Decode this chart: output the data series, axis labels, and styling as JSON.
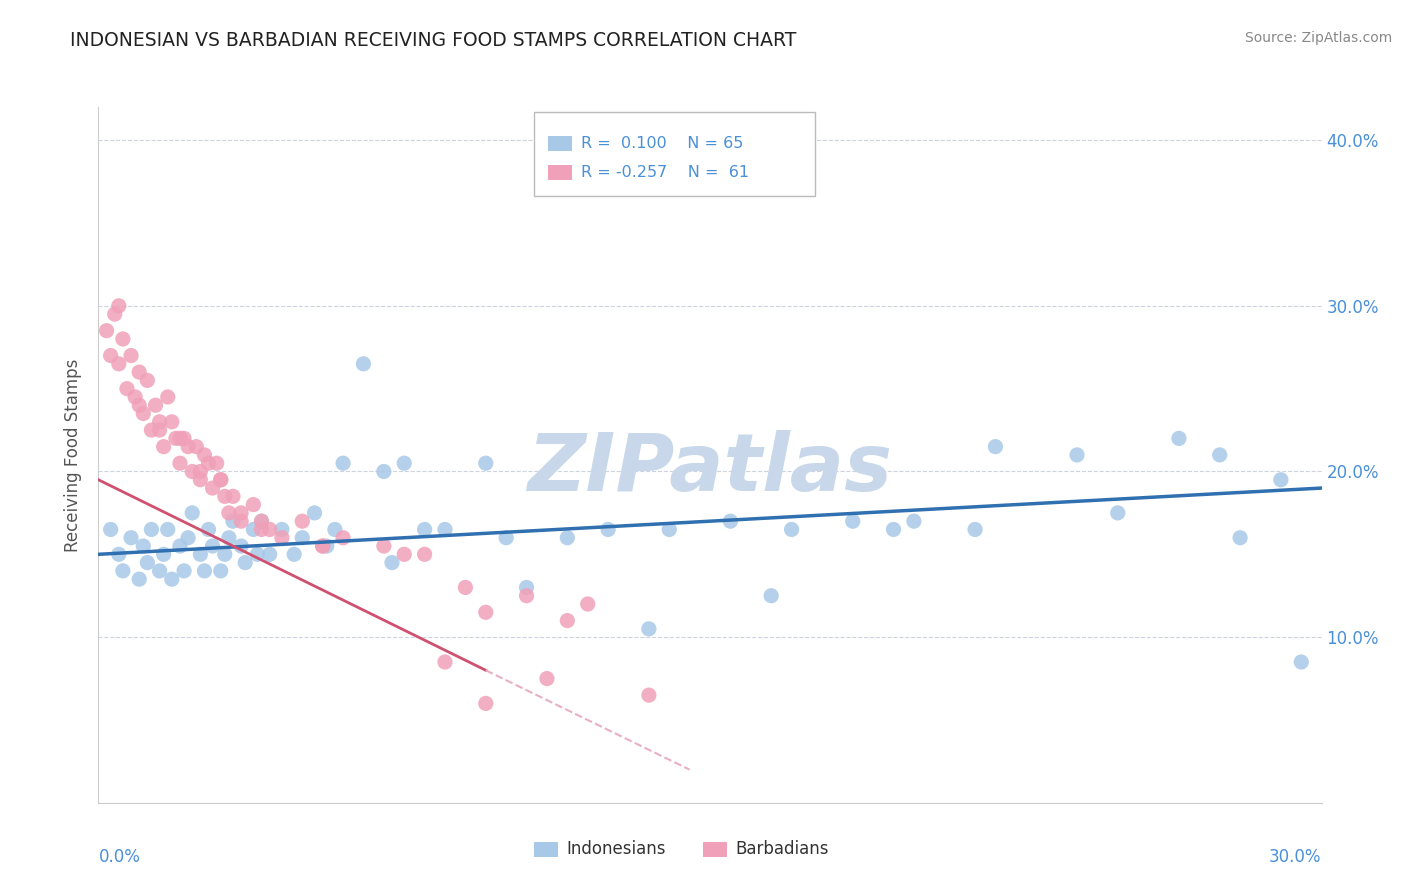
{
  "title": "INDONESIAN VS BARBADIAN RECEIVING FOOD STAMPS CORRELATION CHART",
  "source": "Source: ZipAtlas.com",
  "ylabel": "Receiving Food Stamps",
  "xlim": [
    0.0,
    30.0
  ],
  "ylim": [
    0.0,
    42.0
  ],
  "indonesian_color": "#a8c8e8",
  "barbadian_color": "#f0a0b8",
  "indonesian_line_color": "#3070b0",
  "barbadian_line_color": "#d05070",
  "barbadian_line_dash_color": "#e8b0c0",
  "watermark_color": "#c8d8ea",
  "indonesian_x": [
    0.3,
    0.5,
    0.6,
    0.8,
    1.0,
    1.1,
    1.2,
    1.3,
    1.5,
    1.6,
    1.7,
    1.8,
    2.0,
    2.1,
    2.2,
    2.3,
    2.5,
    2.6,
    2.7,
    2.8,
    3.0,
    3.1,
    3.2,
    3.3,
    3.5,
    3.6,
    3.8,
    4.0,
    4.2,
    4.5,
    4.8,
    5.0,
    5.3,
    5.6,
    6.0,
    6.5,
    7.0,
    7.5,
    8.5,
    9.5,
    10.0,
    11.5,
    12.5,
    14.0,
    15.5,
    17.0,
    18.5,
    20.0,
    21.5,
    22.0,
    24.0,
    25.0,
    26.5,
    28.0,
    29.0,
    29.5,
    3.9,
    5.8,
    7.2,
    8.0,
    10.5,
    13.5,
    16.5,
    19.5,
    27.5
  ],
  "indonesian_y": [
    16.5,
    15.0,
    14.0,
    16.0,
    13.5,
    15.5,
    14.5,
    16.5,
    14.0,
    15.0,
    16.5,
    13.5,
    15.5,
    14.0,
    16.0,
    17.5,
    15.0,
    14.0,
    16.5,
    15.5,
    14.0,
    15.0,
    16.0,
    17.0,
    15.5,
    14.5,
    16.5,
    17.0,
    15.0,
    16.5,
    15.0,
    16.0,
    17.5,
    15.5,
    20.5,
    26.5,
    20.0,
    20.5,
    16.5,
    20.5,
    16.0,
    16.0,
    16.5,
    16.5,
    17.0,
    16.5,
    17.0,
    17.0,
    16.5,
    21.5,
    21.0,
    17.5,
    22.0,
    16.0,
    19.5,
    8.5,
    15.0,
    16.5,
    14.5,
    16.5,
    13.0,
    10.5,
    12.5,
    16.5,
    21.0
  ],
  "barbadian_x": [
    0.2,
    0.3,
    0.4,
    0.5,
    0.6,
    0.7,
    0.8,
    0.9,
    1.0,
    1.1,
    1.2,
    1.3,
    1.4,
    1.5,
    1.6,
    1.7,
    1.8,
    1.9,
    2.0,
    2.1,
    2.2,
    2.3,
    2.4,
    2.5,
    2.6,
    2.7,
    2.8,
    2.9,
    3.0,
    3.1,
    3.2,
    3.3,
    3.5,
    3.8,
    4.0,
    4.2,
    4.5,
    5.0,
    5.5,
    6.0,
    7.0,
    8.0,
    8.5,
    9.0,
    9.5,
    10.5,
    11.0,
    11.5,
    12.0,
    13.5,
    0.5,
    1.0,
    1.5,
    2.0,
    2.5,
    3.0,
    3.5,
    4.0,
    5.5,
    7.5,
    9.5
  ],
  "barbadian_y": [
    28.5,
    27.0,
    29.5,
    26.5,
    28.0,
    25.0,
    27.0,
    24.5,
    26.0,
    23.5,
    25.5,
    22.5,
    24.0,
    23.0,
    21.5,
    24.5,
    23.0,
    22.0,
    20.5,
    22.0,
    21.5,
    20.0,
    21.5,
    19.5,
    21.0,
    20.5,
    19.0,
    20.5,
    19.5,
    18.5,
    17.5,
    18.5,
    17.5,
    18.0,
    17.0,
    16.5,
    16.0,
    17.0,
    15.5,
    16.0,
    15.5,
    15.0,
    8.5,
    13.0,
    6.0,
    12.5,
    7.5,
    11.0,
    12.0,
    6.5,
    30.0,
    24.0,
    22.5,
    22.0,
    20.0,
    19.5,
    17.0,
    16.5,
    15.5,
    15.0,
    11.5
  ],
  "indo_line_x0": 0.0,
  "indo_line_y0": 15.0,
  "indo_line_x1": 30.0,
  "indo_line_y1": 19.0,
  "barb_solid_x0": 0.0,
  "barb_solid_y0": 19.5,
  "barb_solid_x1": 9.5,
  "barb_solid_y1": 8.0,
  "barb_dash_x0": 9.5,
  "barb_dash_y0": 8.0,
  "barb_dash_x1": 14.5,
  "barb_dash_y1": 2.0
}
